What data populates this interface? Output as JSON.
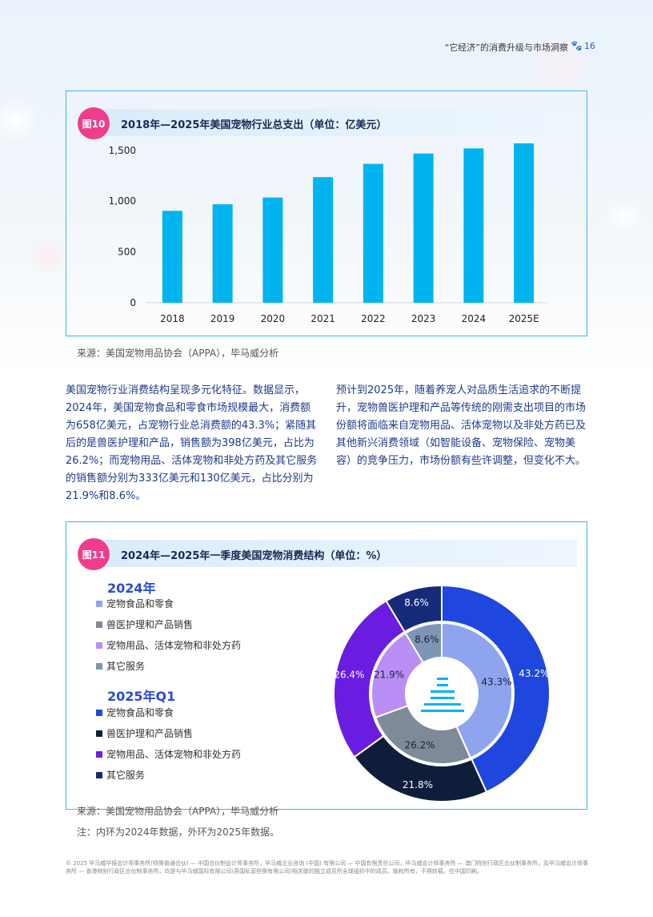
{
  "header": {
    "title": "“它经济”的消费升级与市场洞察",
    "page": "16"
  },
  "fig10": {
    "badge": "图10",
    "title": "2018年—2025年美国宠物行业总支出（单位：亿美元）",
    "source": "来源：美国宠物用品协会（APPA），毕马威分析"
  },
  "text_left": "美国宠物行业消费结构呈现多元化特征。数据显示，2024年，美国宠物食品和零食市场规模最大，消费额为658亿美元，占宠物行业总消费额的43.3%；紧随其后的是兽医护理和产品，销售额为398亿美元，占比为26.2%；而宠物用品、活体宠物和非处方药及其它服务的销售额分别为333亿美元和130亿美元，占比分别为21.9%和8.6%。",
  "text_right": "预计到2025年，随着养宠人对品质生活追求的不断提升，宠物兽医护理和产品等传统的刚需支出项目的市场份额将面临来自宠物用品、活体宠物以及非处方药已及其他新兴消费领域（如智能设备、宠物保险、宠物美容）的竞争压力，市场份额有些许调整，但变化不大。",
  "fig11": {
    "badge": "图11",
    "title": "2024年—2025年一季度美国宠物消费结构（单位：%）",
    "legend_2024_title": "2024年",
    "legend_2025_title": "2025年Q1",
    "source": "来源：美国宠物用品协会（APPA），毕马威分析",
    "note": "注：内环为2024年数据，外环为2025年数据。"
  },
  "footer": "© 2025 毕马威华振会计师事务所(特殊普通合伙) — 中国合伙制会计师事务所，毕马威企业咨询 (中国) 有限公司 — 中国有限责任公司，毕马威会计师事务所 — 澳门特别行政区合伙制事务所，及毕马威会计师事务所 — 香港特别行政区合伙制事务所，均是与毕马威国际有限公司(英国私营担保有限公司)相关联的独立成员所全球组织中的成员。版权所有，不得转载。在中国印刷。",
  "colors": {
    "bar": "#00b4ef",
    "accent": "#2a4bd0",
    "badge": "#f03c8c"
  },
  "chart_data": [
    {
      "type": "bar",
      "categories": [
        "2018",
        "2019",
        "2020",
        "2021",
        "2022",
        "2023",
        "2024",
        "2025E"
      ],
      "values": [
        905,
        970,
        1036,
        1237,
        1368,
        1470,
        1520,
        1570
      ],
      "title": "2018年—2025年美国宠物行业总支出（单位：亿美元）",
      "ylim": [
        0,
        1600
      ],
      "yticks": [
        0,
        500,
        1000,
        1500
      ],
      "ytick_labels": [
        "0",
        "500",
        "1,000",
        "1,500"
      ],
      "grid": false
    },
    {
      "type": "pie",
      "title": "2024年—2025年一季度美国宠物消费结构（单位：%）",
      "categories": [
        "宠物食品和零食",
        "兽医护理和产品销售",
        "宠物用品、活体宠物和非处方药",
        "其它服务"
      ],
      "series": [
        {
          "name": "2024年",
          "ring": "inner",
          "values": [
            43.3,
            26.2,
            21.9,
            8.6
          ],
          "labels": [
            "43.3%",
            "26.2%",
            "21.9%",
            "8.6%"
          ],
          "colors": [
            "#8fa4ee",
            "#7f8a99",
            "#b98ef5",
            "#7f95b8"
          ]
        },
        {
          "name": "2025年Q1",
          "ring": "outer",
          "values": [
            43.2,
            21.8,
            26.4,
            8.6
          ],
          "labels": [
            "43.2%",
            "21.8%",
            "26.4%",
            "8.6%"
          ],
          "colors": [
            "#1f47dd",
            "#0e1e3a",
            "#6a1de0",
            "#162a7a"
          ]
        }
      ]
    }
  ]
}
